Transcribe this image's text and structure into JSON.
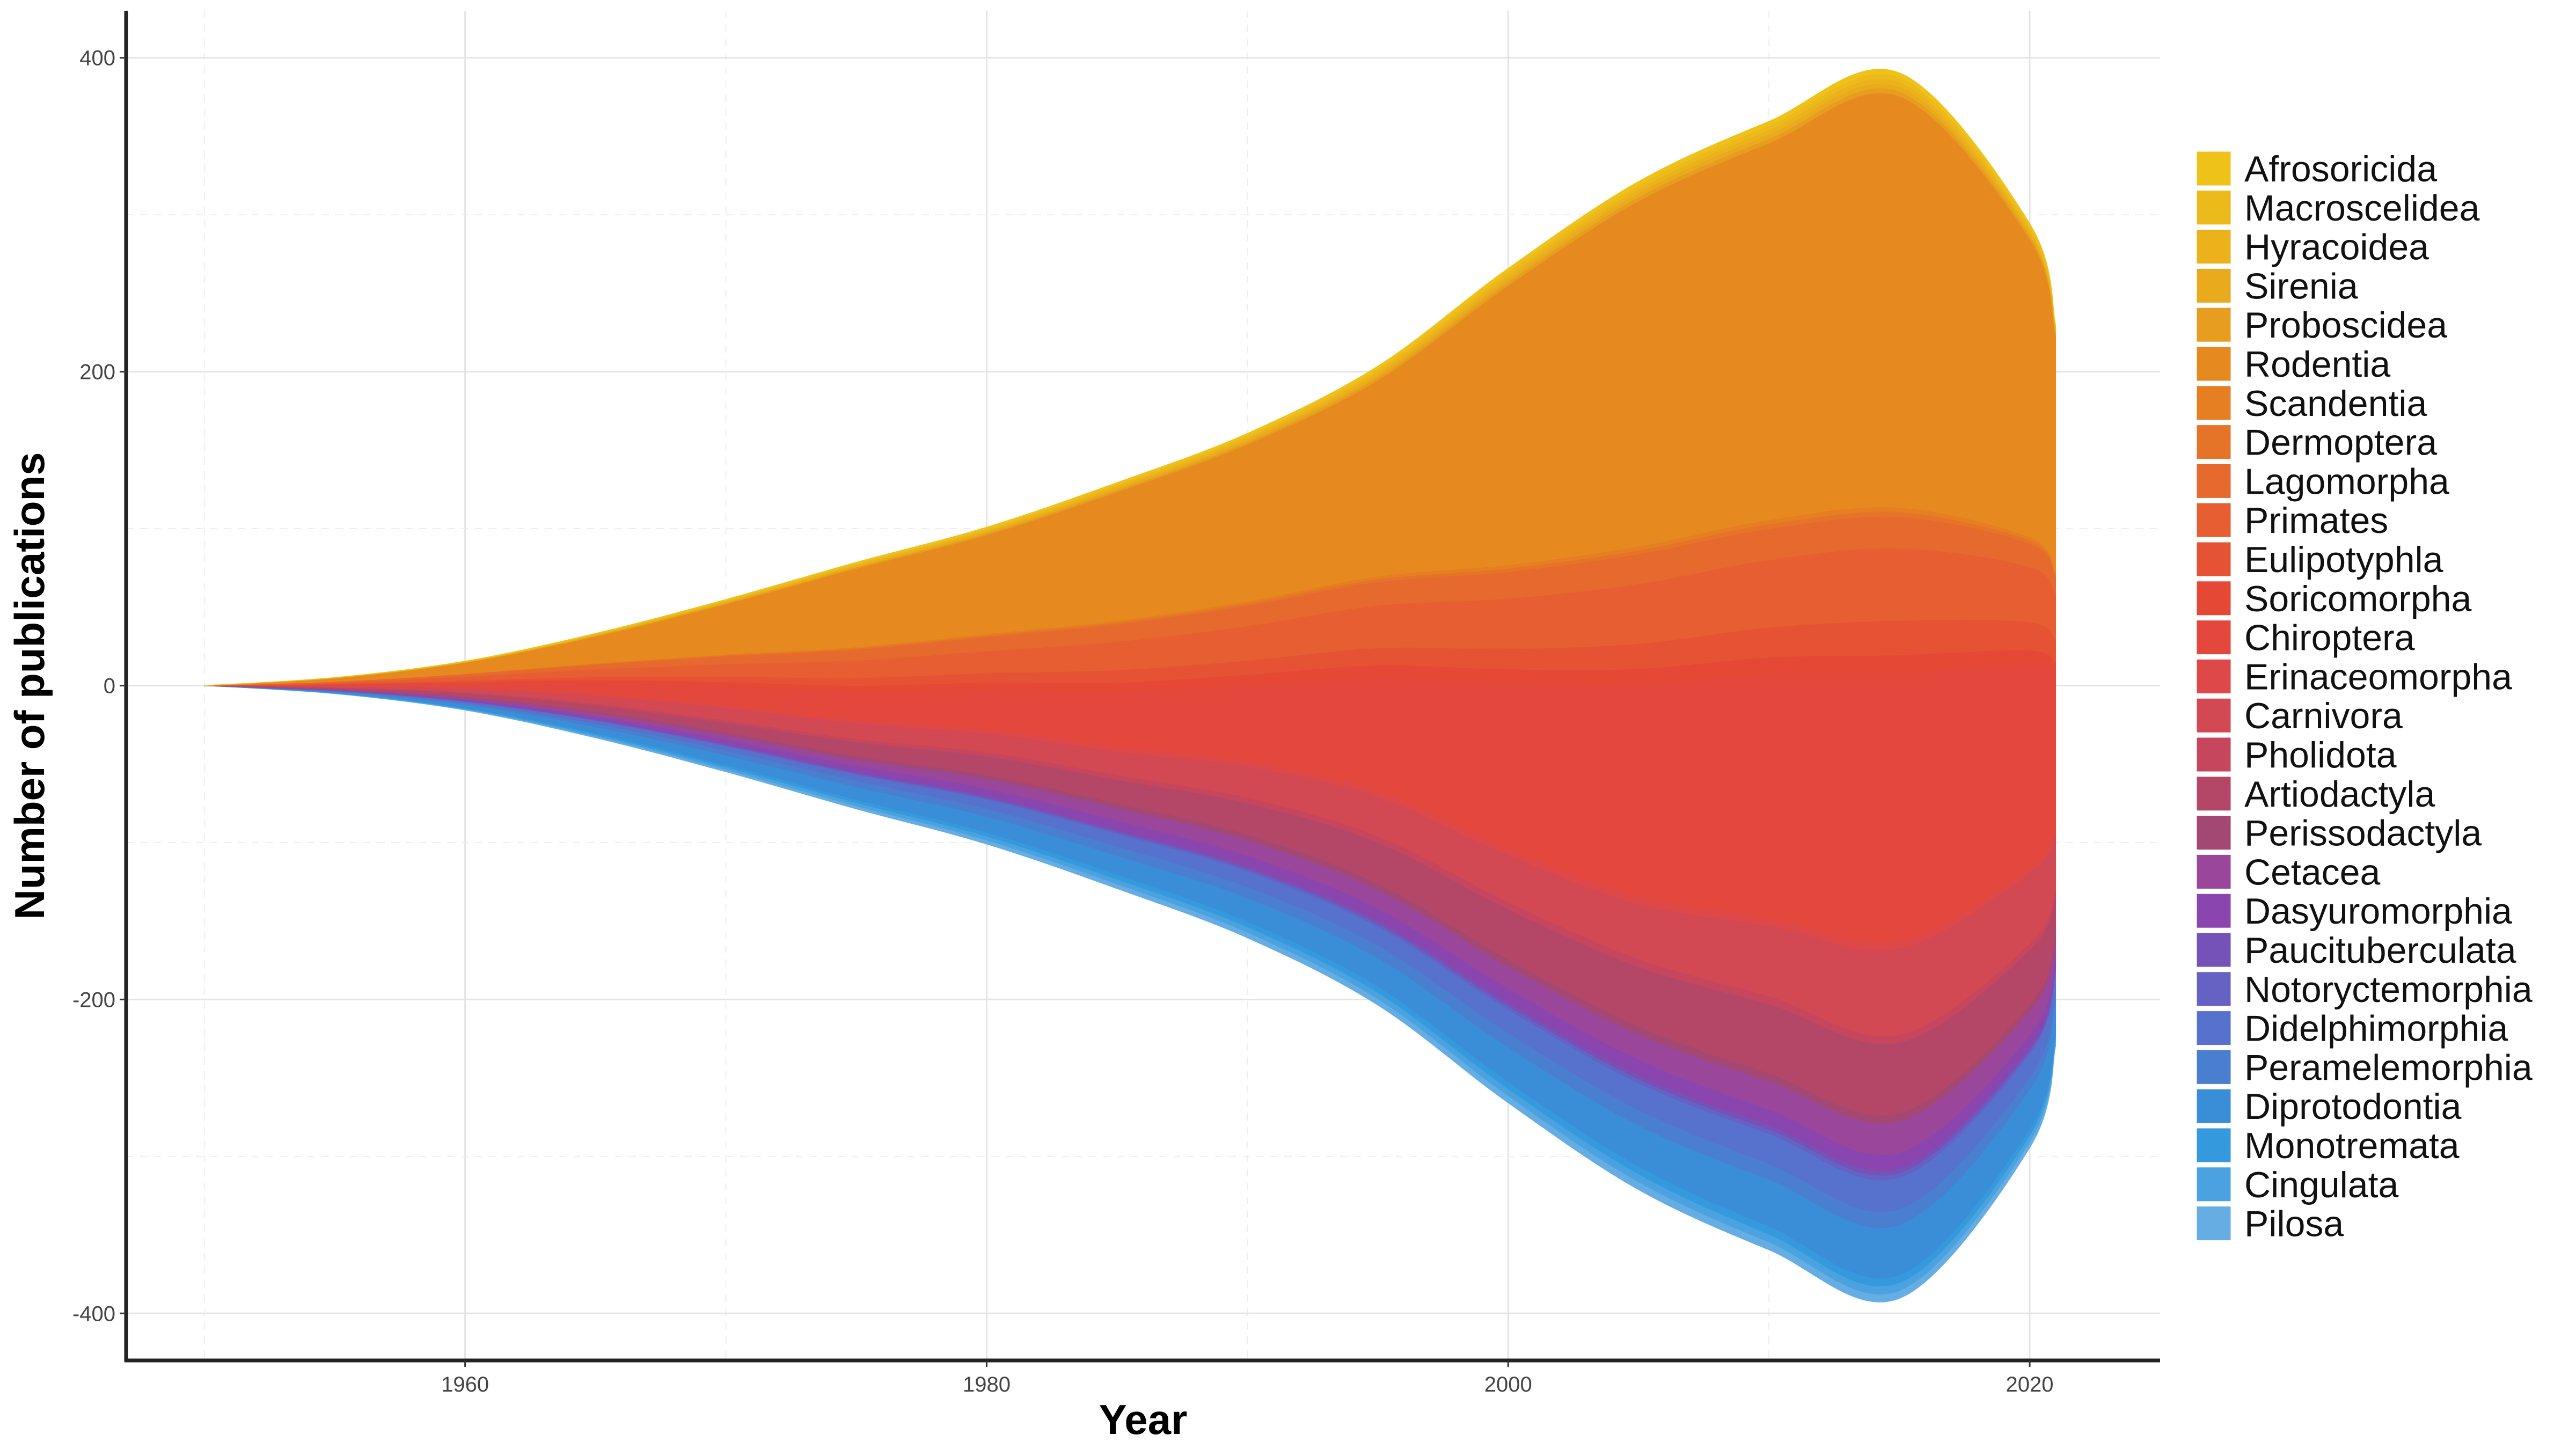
{
  "chart_data": {
    "type": "area",
    "subtype": "streamgraph (stacked, centered on zero)",
    "xlabel": "Year",
    "ylabel": "Number of publications",
    "xlim": [
      1947,
      2025
    ],
    "ylim": [
      -430,
      430
    ],
    "x_ticks": [
      1960,
      1980,
      2000,
      2020
    ],
    "y_ticks": [
      -400,
      -200,
      0,
      200,
      400
    ],
    "grid": true,
    "legend_position": "right",
    "x": [
      1950,
      1955,
      1960,
      1965,
      1970,
      1975,
      1980,
      1985,
      1990,
      1995,
      2000,
      2005,
      2010,
      2015,
      2020,
      2021
    ],
    "series": [
      {
        "name": "Afrosoricida",
        "color": "#EFC21A",
        "values": [
          0,
          0.1,
          0.2,
          0.4,
          0.6,
          0.8,
          1.0,
          1.2,
          1.4,
          1.8,
          2.2,
          2.5,
          2.8,
          3.0,
          2.0,
          1.5
        ]
      },
      {
        "name": "Macroscelidea",
        "color": "#EDBA1B",
        "values": [
          0,
          0.1,
          0.2,
          0.4,
          0.6,
          0.8,
          1.0,
          1.2,
          1.4,
          1.8,
          2.2,
          2.5,
          2.8,
          3.0,
          2.0,
          1.5
        ]
      },
      {
        "name": "Hyracoidea",
        "color": "#EBB21C",
        "values": [
          0,
          0.1,
          0.2,
          0.4,
          0.6,
          0.8,
          1.0,
          1.2,
          1.4,
          1.8,
          2.2,
          2.5,
          2.8,
          3.0,
          2.0,
          1.5
        ]
      },
      {
        "name": "Sirenia",
        "color": "#E9AA1D",
        "values": [
          0,
          0.1,
          0.2,
          0.4,
          0.6,
          0.8,
          1.0,
          1.2,
          1.4,
          1.8,
          2.2,
          2.5,
          2.8,
          3.0,
          2.0,
          1.5
        ]
      },
      {
        "name": "Proboscidea",
        "color": "#E79D1F",
        "values": [
          0,
          0.1,
          0.2,
          0.4,
          0.6,
          0.8,
          1.0,
          1.2,
          1.4,
          1.8,
          2.2,
          2.5,
          2.8,
          3.0,
          2.0,
          1.5
        ]
      },
      {
        "name": "Rodentia",
        "color": "#E68A20",
        "values": [
          0,
          2,
          7,
          17,
          32,
          50,
          63,
          82,
          100,
          125,
          178,
          220,
          240,
          262,
          190,
          150
        ]
      },
      {
        "name": "Scandentia",
        "color": "#E67E22",
        "values": [
          0,
          0.1,
          0.2,
          0.4,
          0.6,
          0.8,
          1.0,
          1.2,
          1.4,
          1.8,
          2.2,
          2.5,
          2.8,
          3.0,
          2.0,
          1.5
        ]
      },
      {
        "name": "Dermoptera",
        "color": "#E67428",
        "values": [
          0,
          0.1,
          0.2,
          0.4,
          0.6,
          0.8,
          1.0,
          1.2,
          1.4,
          1.8,
          2.2,
          2.5,
          2.8,
          3.0,
          2.0,
          1.5
        ]
      },
      {
        "name": "Lagomorpha",
        "color": "#E6692D",
        "values": [
          0,
          0.5,
          1.5,
          3,
          5,
          7,
          9,
          11,
          13,
          15,
          17,
          19,
          20,
          20,
          15,
          12
        ]
      },
      {
        "name": "Primates",
        "color": "#E65E31",
        "values": [
          0,
          0.8,
          2.5,
          5,
          8,
          11,
          14,
          18,
          22,
          27,
          32,
          38,
          43,
          46,
          35,
          28
        ]
      },
      {
        "name": "Eulipotyphla",
        "color": "#E65334",
        "values": [
          0,
          0.3,
          1,
          2,
          3.5,
          5,
          6,
          8,
          9,
          11,
          13,
          16,
          19,
          22,
          18,
          15
        ]
      },
      {
        "name": "Soricomorpha",
        "color": "#E64836",
        "values": [
          0,
          0.3,
          1,
          2,
          3,
          4,
          5,
          6,
          7,
          8,
          9,
          10,
          11,
          12,
          8,
          7
        ]
      },
      {
        "name": "Chiroptera",
        "color": "#E4483C",
        "values": [
          0,
          0.8,
          2.5,
          7,
          12,
          18,
          25,
          35,
          48,
          72,
          105,
          135,
          155,
          170,
          130,
          100
        ]
      },
      {
        "name": "Erinaceomorpha",
        "color": "#DE4848",
        "values": [
          0,
          0.2,
          0.5,
          1,
          1.5,
          2,
          2.5,
          3,
          3.5,
          4,
          4.5,
          5,
          5,
          5,
          4,
          3
        ]
      },
      {
        "name": "Carnivora",
        "color": "#D24853",
        "values": [
          0,
          0.8,
          2.5,
          5,
          8,
          10,
          12,
          15,
          20,
          25,
          30,
          35,
          45,
          55,
          45,
          35
        ]
      },
      {
        "name": "Pholidota",
        "color": "#C5465D",
        "values": [
          0,
          0.2,
          0.5,
          1,
          1.5,
          2,
          2.5,
          3,
          3.5,
          4,
          4.5,
          5,
          5,
          5,
          4,
          3
        ]
      },
      {
        "name": "Artiodactyla",
        "color": "#B44767",
        "values": [
          0,
          0.8,
          2.5,
          4,
          6,
          9,
          12,
          15,
          20,
          26,
          32,
          38,
          44,
          45,
          35,
          25
        ]
      },
      {
        "name": "Perissodactyla",
        "color": "#A24872",
        "values": [
          0,
          0.2,
          0.5,
          1,
          1.5,
          2,
          2.5,
          3,
          3.5,
          4,
          4.5,
          5,
          5,
          5,
          4,
          3
        ]
      },
      {
        "name": "Cetacea",
        "color": "#9A479B",
        "values": [
          0,
          0.4,
          1,
          2,
          3,
          4,
          6,
          8,
          10,
          12,
          14,
          16,
          18,
          20,
          15,
          12
        ]
      },
      {
        "name": "Dasyuromorphia",
        "color": "#8A46AE",
        "values": [
          0,
          0.3,
          1,
          2,
          3,
          4,
          5,
          6,
          7,
          8,
          9,
          10,
          10,
          10,
          8,
          6
        ]
      },
      {
        "name": "Paucituberculata",
        "color": "#7552B8",
        "values": [
          0,
          0.1,
          0.2,
          0.4,
          0.6,
          0.8,
          1.0,
          1.2,
          1.4,
          1.8,
          2.2,
          2.5,
          2.8,
          3.0,
          2.0,
          1.5
        ]
      },
      {
        "name": "Notoryctemorphia",
        "color": "#6662C4",
        "values": [
          0,
          0.1,
          0.2,
          0.4,
          0.6,
          0.8,
          1.0,
          1.2,
          1.4,
          1.8,
          2.2,
          2.5,
          2.8,
          3.0,
          2.0,
          1.5
        ]
      },
      {
        "name": "Didelphimorphia",
        "color": "#5672CC",
        "values": [
          0,
          0.4,
          1,
          2,
          3,
          4,
          6,
          8,
          10,
          12,
          15,
          17,
          19,
          20,
          15,
          12
        ]
      },
      {
        "name": "Peramelemorphia",
        "color": "#4A7FD0",
        "values": [
          0,
          0.3,
          1,
          2,
          3,
          4,
          5,
          6,
          7,
          8,
          9,
          10,
          10,
          10,
          8,
          6
        ]
      },
      {
        "name": "Diprotodontia",
        "color": "#3A8ED8",
        "values": [
          0,
          0.6,
          2,
          4,
          6,
          8,
          10,
          12,
          15,
          18,
          22,
          26,
          30,
          32,
          25,
          20
        ]
      },
      {
        "name": "Monotremata",
        "color": "#3599DD",
        "values": [
          0,
          0.2,
          0.5,
          1,
          1.5,
          2,
          2.5,
          3,
          3.5,
          4,
          4.5,
          5,
          5,
          5,
          4,
          3
        ]
      },
      {
        "name": "Cingulata",
        "color": "#4AA3E0",
        "values": [
          0,
          0.2,
          0.5,
          1,
          1.5,
          2,
          2.5,
          3,
          3.5,
          4,
          4.5,
          5,
          5,
          5,
          4,
          3
        ]
      },
      {
        "name": "Pilosa",
        "color": "#65ADE2",
        "values": [
          0,
          0.2,
          0.5,
          1,
          1.5,
          2,
          2.5,
          3,
          3.5,
          4,
          4.5,
          5,
          5,
          5,
          4,
          3
        ]
      }
    ]
  }
}
